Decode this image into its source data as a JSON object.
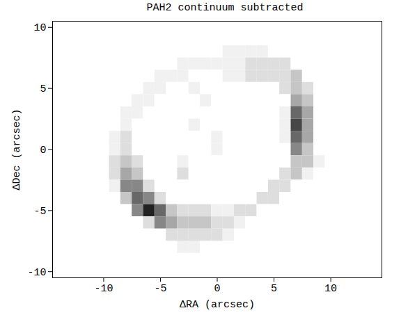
{
  "chart_data": {
    "type": "heatmap",
    "title": "PAH2 continuum subtracted",
    "x_label": "ΔRA (arcsec)",
    "y_label": "ΔDec (arcsec)",
    "xlim": [
      -14.5,
      14.5
    ],
    "ylim": [
      -10.5,
      10.5
    ],
    "xticks": [
      -10,
      -5,
      0,
      5,
      10
    ],
    "yticks": [
      -10,
      -5,
      0,
      5,
      10
    ],
    "color": "greys",
    "zlim": [
      0,
      9
    ],
    "cells": {
      "x": [
        -11,
        -10,
        -9,
        -8,
        -7,
        -6,
        -5,
        -4,
        -3,
        -2,
        -1,
        0,
        1,
        2,
        3,
        4,
        5,
        6,
        7,
        8,
        9,
        10,
        11
      ],
      "y": [
        9,
        8,
        7,
        6,
        5,
        4,
        3,
        2,
        1,
        0,
        -1,
        -2,
        -3,
        -4,
        -5,
        -6,
        -7,
        -8,
        -9
      ],
      "z": [
        [
          0,
          0,
          0,
          0,
          0,
          0,
          0,
          0,
          0,
          0,
          0,
          0,
          0,
          0,
          0,
          0,
          0,
          0,
          0,
          0,
          0,
          0,
          0
        ],
        [
          0,
          0,
          0,
          0,
          0,
          0,
          0,
          0,
          0,
          0,
          0,
          0,
          1,
          1,
          1,
          1,
          0,
          0,
          0,
          0,
          0,
          0,
          0
        ],
        [
          0,
          0,
          0,
          0,
          0,
          0,
          0,
          0,
          1,
          1,
          1,
          1,
          1,
          1,
          2,
          2,
          2,
          2,
          0,
          0,
          0,
          0,
          0
        ],
        [
          0,
          0,
          0,
          0,
          0,
          0,
          1,
          1,
          1,
          0,
          0,
          0,
          1,
          1,
          2,
          2,
          2,
          2,
          3,
          0,
          0,
          0,
          0
        ],
        [
          0,
          0,
          0,
          0,
          0,
          1,
          1,
          0,
          0,
          1,
          0,
          0,
          0,
          0,
          0,
          0,
          0,
          2,
          3,
          2,
          0,
          0,
          0
        ],
        [
          0,
          0,
          0,
          0,
          1,
          1,
          0,
          0,
          0,
          0,
          1,
          0,
          0,
          0,
          0,
          0,
          0,
          0,
          4,
          3,
          0,
          0,
          0
        ],
        [
          0,
          0,
          0,
          1,
          1,
          0,
          0,
          0,
          0,
          0,
          0,
          0,
          0,
          0,
          0,
          0,
          0,
          1,
          6,
          4,
          0,
          0,
          0
        ],
        [
          0,
          0,
          0,
          1,
          0,
          0,
          0,
          0,
          0,
          1,
          0,
          0,
          0,
          0,
          0,
          0,
          0,
          1,
          7,
          4,
          0,
          0,
          0
        ],
        [
          0,
          0,
          1,
          2,
          0,
          0,
          0,
          0,
          0,
          0,
          0,
          1,
          0,
          0,
          0,
          0,
          0,
          1,
          6,
          4,
          0,
          0,
          0
        ],
        [
          0,
          0,
          1,
          2,
          0,
          0,
          0,
          0,
          0,
          0,
          0,
          1,
          0,
          0,
          0,
          0,
          0,
          0,
          5,
          3,
          0,
          0,
          0
        ],
        [
          0,
          0,
          2,
          3,
          2,
          0,
          0,
          0,
          1,
          0,
          0,
          0,
          0,
          0,
          0,
          0,
          0,
          0,
          3,
          3,
          1,
          0,
          0
        ],
        [
          0,
          0,
          2,
          4,
          3,
          0,
          0,
          0,
          2,
          0,
          0,
          0,
          0,
          0,
          0,
          0,
          0,
          2,
          3,
          1,
          0,
          0,
          0
        ],
        [
          0,
          0,
          1,
          5,
          5,
          2,
          0,
          0,
          0,
          0,
          0,
          0,
          0,
          0,
          0,
          0,
          2,
          2,
          0,
          0,
          0,
          0,
          0
        ],
        [
          0,
          0,
          0,
          3,
          6,
          5,
          2,
          0,
          0,
          0,
          0,
          0,
          0,
          0,
          0,
          2,
          2,
          0,
          0,
          0,
          0,
          0,
          0
        ],
        [
          0,
          0,
          0,
          0,
          5,
          8,
          6,
          3,
          2,
          2,
          2,
          1,
          1,
          2,
          2,
          0,
          0,
          0,
          0,
          0,
          0,
          0,
          0
        ],
        [
          0,
          0,
          0,
          0,
          0,
          2,
          5,
          4,
          3,
          3,
          3,
          2,
          2,
          1,
          0,
          0,
          0,
          0,
          0,
          0,
          0,
          0,
          0
        ],
        [
          0,
          0,
          0,
          0,
          0,
          0,
          0,
          2,
          2,
          2,
          2,
          2,
          1,
          0,
          0,
          0,
          0,
          0,
          0,
          0,
          0,
          0,
          0
        ],
        [
          0,
          0,
          0,
          0,
          0,
          0,
          0,
          0,
          1,
          1,
          0,
          0,
          0,
          0,
          0,
          0,
          0,
          0,
          0,
          0,
          0,
          0,
          0
        ],
        [
          0,
          0,
          0,
          0,
          0,
          0,
          0,
          0,
          0,
          0,
          0,
          0,
          0,
          0,
          0,
          0,
          0,
          0,
          0,
          0,
          0,
          0,
          0
        ]
      ]
    }
  }
}
